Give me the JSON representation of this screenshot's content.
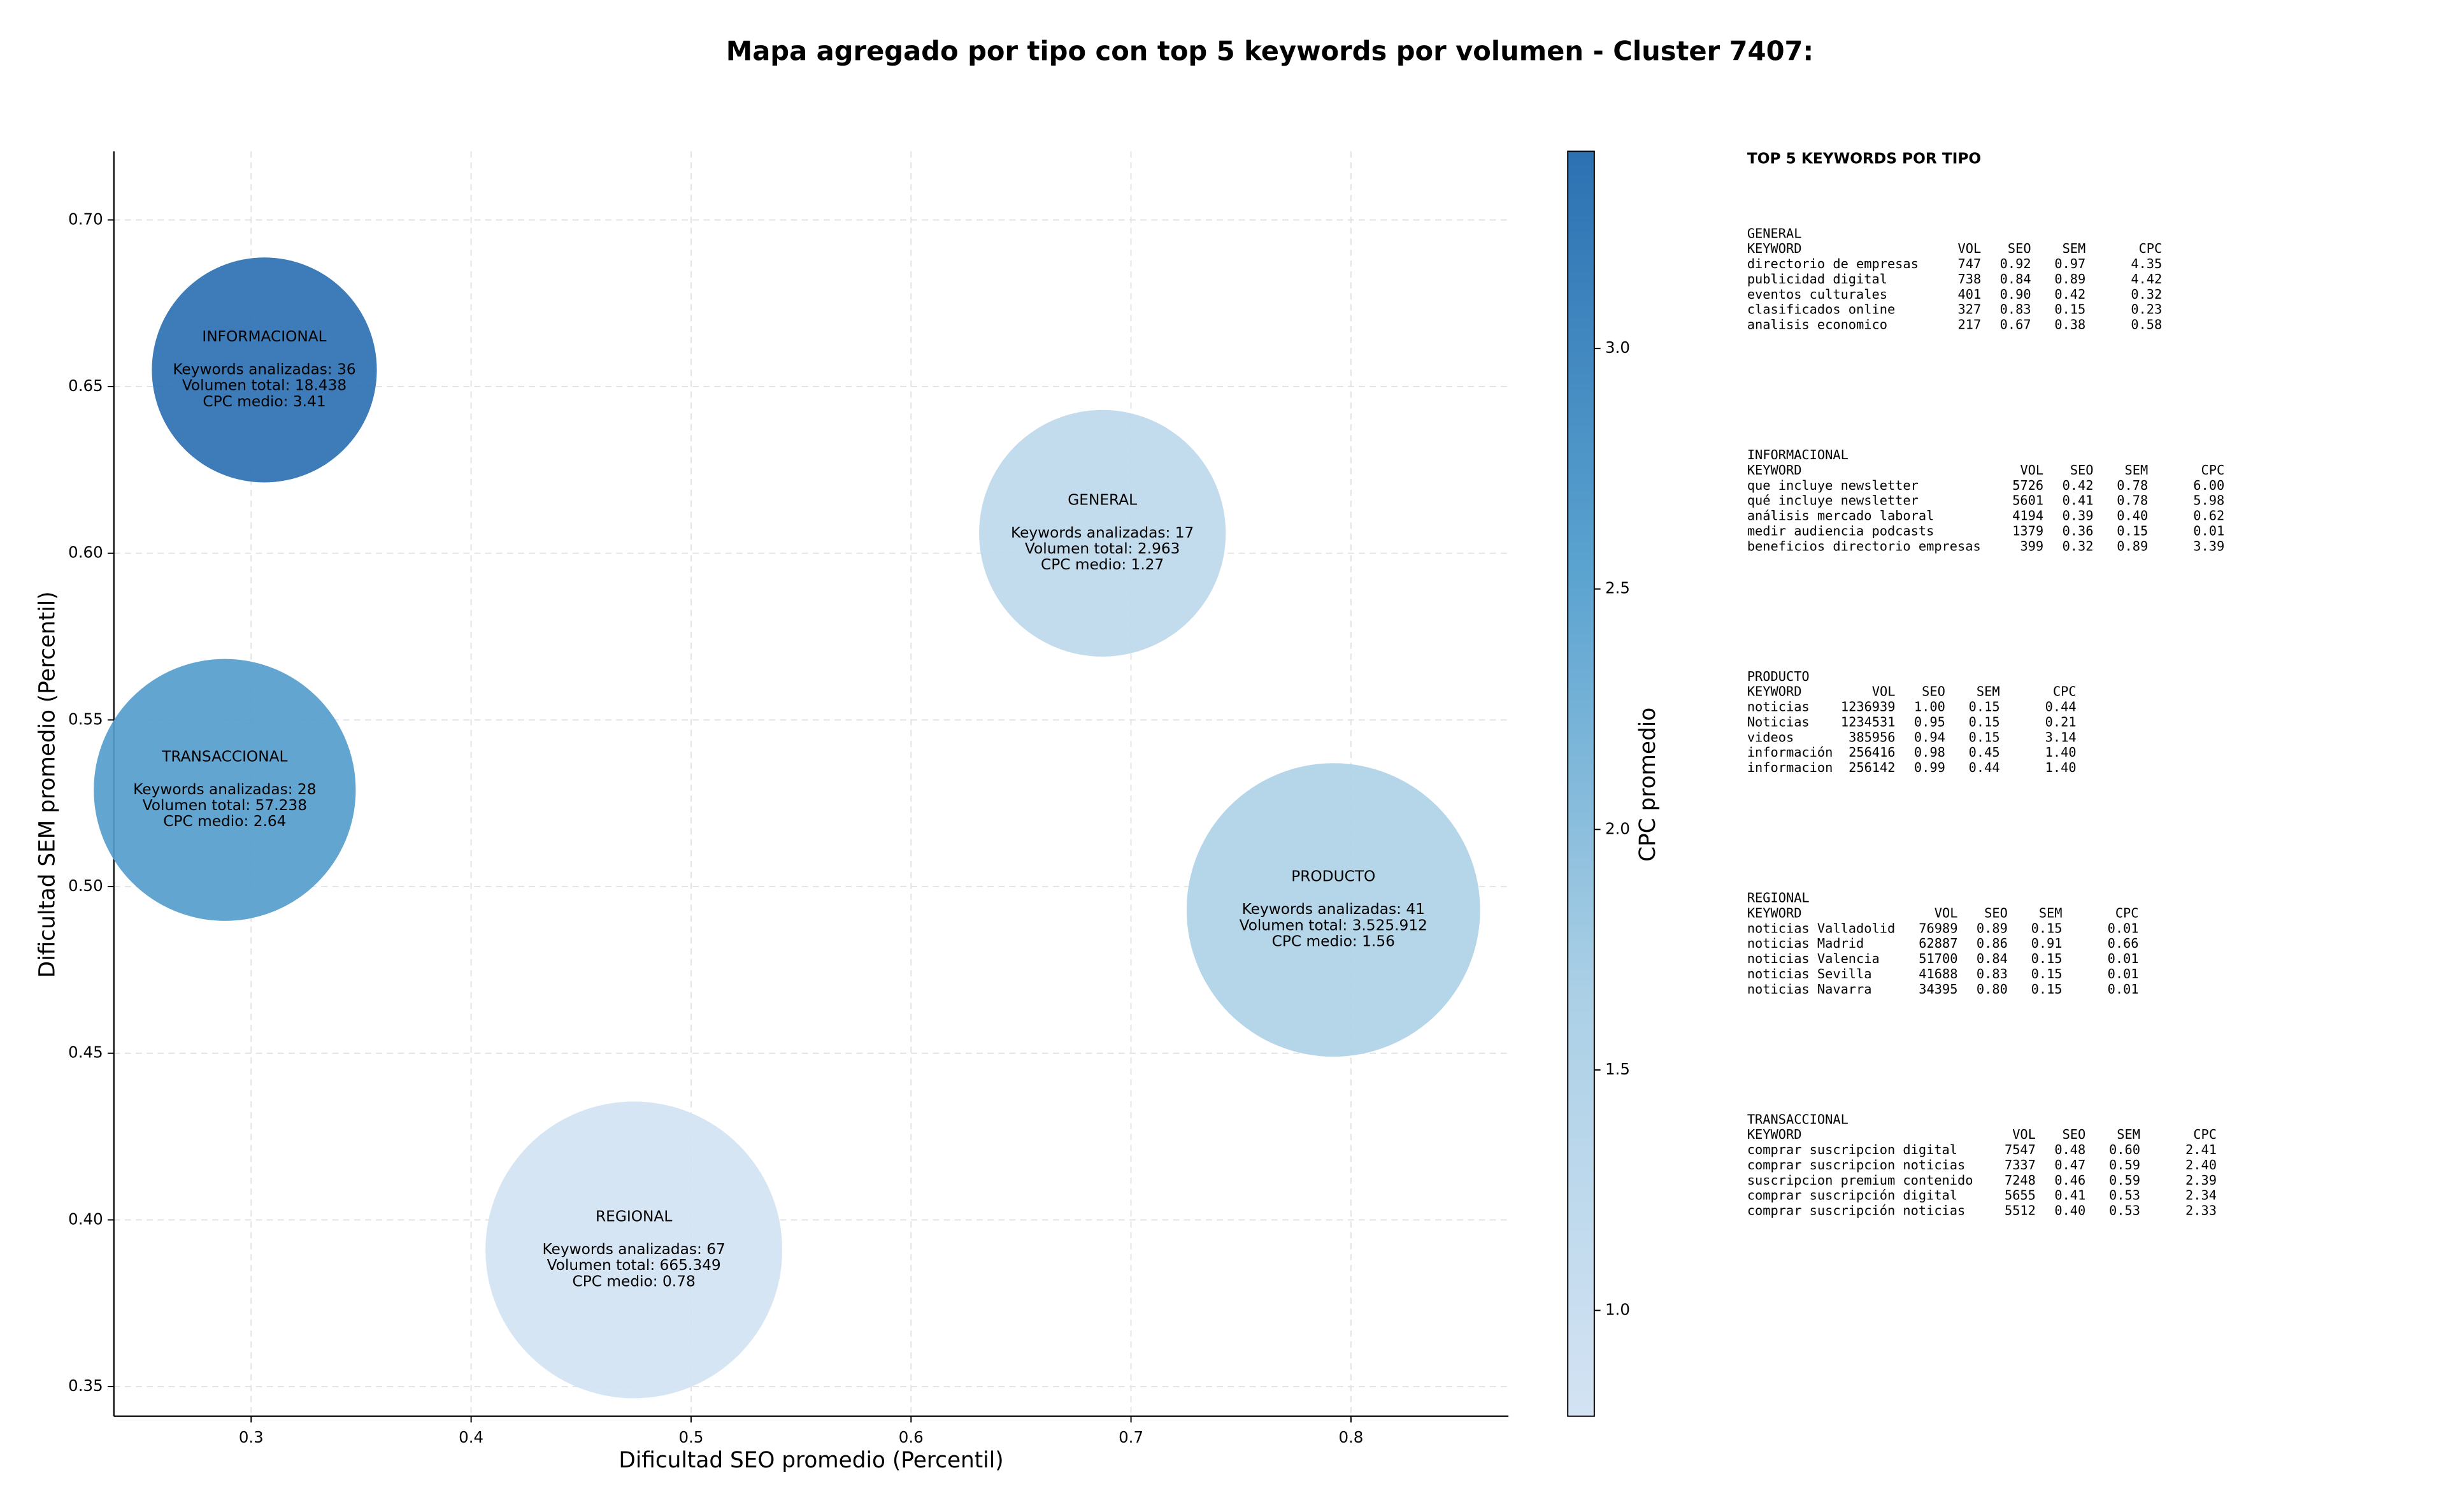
{
  "chart_data": {
    "type": "bubble",
    "title": "Mapa agregado por tipo con top 5 keywords por volumen - Cluster 7407:",
    "xlabel": "Dificultad SEO promedio (Percentil)",
    "ylabel": "Dificultad SEM promedio (Percentil)",
    "colorbar_label": "CPC promedio",
    "categories": [
      "INFORMACIONAL",
      "GENERAL",
      "TRANSACCIONAL",
      "PRODUCTO",
      "REGIONAL"
    ],
    "x": [
      0.306,
      0.687,
      0.288,
      0.792,
      0.474
    ],
    "values": [
      0.655,
      0.606,
      0.529,
      0.493,
      0.391
    ],
    "sizes": [
      5200,
      6250,
      7050,
      8850,
      9050
    ],
    "cpc": [
      3.41,
      1.27,
      2.64,
      1.56,
      0.78
    ],
    "annotations": [
      [
        "Keywords analizadas: 36",
        "Volumen total: 18.438",
        "CPC medio: 3.41"
      ],
      [
        "Keywords analizadas: 17",
        "Volumen total: 2.963",
        "CPC medio: 1.27"
      ],
      [
        "Keywords analizadas: 28",
        "Volumen total: 57.238",
        "CPC medio: 2.64"
      ],
      [
        "Keywords analizadas: 41",
        "Volumen total: 3.525.912",
        "CPC medio: 1.56"
      ],
      [
        "Keywords analizadas: 67",
        "Volumen total: 665.349",
        "CPC medio: 0.78"
      ]
    ],
    "colormap": [
      "#d3e3f3",
      "#abd0e6",
      "#5ba3d0",
      "#2c71b2"
    ],
    "clim": [
      0.78,
      3.41
    ],
    "cticks": [
      {
        "value": 1,
        "label": "1.0"
      },
      1.5,
      {
        "value": 2,
        "label": "2.0"
      },
      2.5,
      {
        "value": 3,
        "label": "3.0"
      }
    ],
    "xlim": [
      0.2376,
      0.8716
    ],
    "xticks": [
      0.3,
      0.4,
      0.5,
      0.6,
      0.7,
      0.8
    ],
    "ylim": [
      0.3411,
      0.7206
    ],
    "yticks": [
      0.35,
      {
        "value": 0.4,
        "label": "0.40"
      },
      0.45,
      {
        "value": 0.5,
        "label": "0.50"
      },
      0.55,
      {
        "value": 0.6,
        "label": "0.60"
      },
      0.65,
      {
        "value": 0.7,
        "label": "0.70"
      }
    ],
    "grid": true
  },
  "keyword_panel": {
    "title": "TOP 5 KEYWORDS POR TIPO",
    "sections": [
      {
        "name": "GENERAL",
        "header": [
          "KEYWORD",
          "VOL",
          "SEO",
          "SEM",
          "CPC"
        ],
        "rows": [
          [
            "directorio de empresas",
            "747",
            "0.92",
            "0.97",
            "4.35"
          ],
          [
            "publicidad digital",
            "738",
            "0.84",
            "0.89",
            "4.42"
          ],
          [
            "eventos culturales",
            "401",
            "0.90",
            "0.42",
            "0.32"
          ],
          [
            "clasificados online",
            "327",
            "0.83",
            "0.15",
            "0.23"
          ],
          [
            "analisis economico",
            "217",
            "0.67",
            "0.38",
            "0.58"
          ]
        ]
      },
      {
        "name": "INFORMACIONAL",
        "header": [
          "KEYWORD",
          "VOL",
          "SEO",
          "SEM",
          "CPC"
        ],
        "rows": [
          [
            "que incluye newsletter",
            "5726",
            "0.42",
            "0.78",
            "6.00"
          ],
          [
            "qué incluye newsletter",
            "5601",
            "0.41",
            "0.78",
            "5.98"
          ],
          [
            "análisis mercado laboral",
            "4194",
            "0.39",
            "0.40",
            "0.62"
          ],
          [
            "medir audiencia podcasts",
            "1379",
            "0.36",
            "0.15",
            "0.01"
          ],
          [
            "beneficios directorio empresas",
            "399",
            "0.32",
            "0.89",
            "3.39"
          ]
        ]
      },
      {
        "name": "PRODUCTO",
        "header": [
          "KEYWORD",
          "VOL",
          "SEO",
          "SEM",
          "CPC"
        ],
        "rows": [
          [
            "noticias",
            "1236939",
            "1.00",
            "0.15",
            "0.44"
          ],
          [
            "Noticias",
            "1234531",
            "0.95",
            "0.15",
            "0.21"
          ],
          [
            "videos",
            "385956",
            "0.94",
            "0.15",
            "3.14"
          ],
          [
            "información",
            "256416",
            "0.98",
            "0.45",
            "1.40"
          ],
          [
            "informacion",
            "256142",
            "0.99",
            "0.44",
            "1.40"
          ]
        ]
      },
      {
        "name": "REGIONAL",
        "header": [
          "KEYWORD",
          "VOL",
          "SEO",
          "SEM",
          "CPC"
        ],
        "rows": [
          [
            "noticias Valladolid",
            "76989",
            "0.89",
            "0.15",
            "0.01"
          ],
          [
            "noticias Madrid",
            "62887",
            "0.86",
            "0.91",
            "0.66"
          ],
          [
            "noticias Valencia",
            "51700",
            "0.84",
            "0.15",
            "0.01"
          ],
          [
            "noticias Sevilla",
            "41688",
            "0.83",
            "0.15",
            "0.01"
          ],
          [
            "noticias Navarra",
            "34395",
            "0.80",
            "0.15",
            "0.01"
          ]
        ]
      },
      {
        "name": "TRANSACCIONAL",
        "header": [
          "KEYWORD",
          "VOL",
          "SEO",
          "SEM",
          "CPC"
        ],
        "rows": [
          [
            "comprar suscripcion digital",
            "7547",
            "0.48",
            "0.60",
            "2.41"
          ],
          [
            "comprar suscripcion noticias",
            "7337",
            "0.47",
            "0.59",
            "2.40"
          ],
          [
            "suscripcion premium contenido",
            "7248",
            "0.46",
            "0.59",
            "2.39"
          ],
          [
            "comprar suscripción digital",
            "5655",
            "0.41",
            "0.53",
            "2.34"
          ],
          [
            "comprar suscripción noticias",
            "5512",
            "0.40",
            "0.53",
            "2.33"
          ]
        ]
      }
    ]
  }
}
